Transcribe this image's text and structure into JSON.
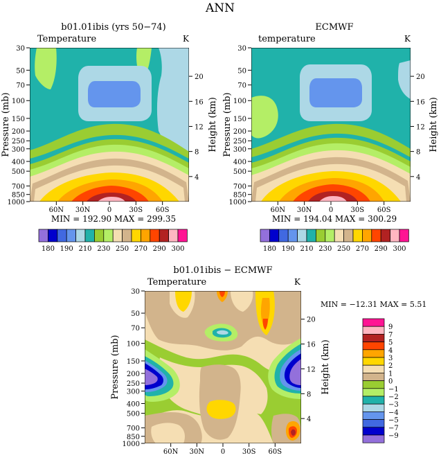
{
  "page_title": "ANN",
  "colors": {
    "c_purple": "#9370db",
    "c_navy": "#0000cd",
    "c_blue": "#4169e1",
    "c_cornflower": "#6495ed",
    "c_lightblue": "#add8e6",
    "c_teal": "#20b2aa",
    "c_green": "#9acd32",
    "c_lightgreen": "#b4ee66",
    "c_wheat": "#f5deb3",
    "c_tan": "#d2b48c",
    "c_yellow": "#ffd700",
    "c_orange": "#ffa500",
    "c_orangered": "#ff4500",
    "c_firebrick": "#b22222",
    "c_pink": "#ffb6c1",
    "c_magenta": "#ff1493"
  },
  "panels": [
    {
      "title": "b01.01ibis (yrs 50−74)",
      "variable": "Temperature",
      "unit": "K",
      "min_max": "MIN = 192.90   MAX = 299.35"
    },
    {
      "title": "ECMWF",
      "variable": "temperature",
      "unit": "K",
      "min_max": "MIN = 194.04   MAX = 300.29"
    },
    {
      "title": "b01.01ibis − ECMWF",
      "variable": "Temperature",
      "unit": "K",
      "min_max": "MIN = −12.31   MAX =     5.51"
    }
  ],
  "axes": {
    "ylabel_left": "Pressure (mb)",
    "ylabel_right": "Height (km)",
    "pressure_ticks": [
      "30",
      "50",
      "70",
      "100",
      "150",
      "200",
      "250",
      "300",
      "400",
      "500",
      "700",
      "850",
      "1000"
    ],
    "height_ticks_top": [
      "20",
      "16",
      "12",
      "8",
      "4"
    ],
    "height_ticks_bottom": [
      "20",
      "16",
      "12",
      "8",
      "4"
    ],
    "lat_ticks": [
      "60N",
      "30N",
      "0",
      "30S",
      "60S"
    ]
  },
  "colorbar_abs": {
    "labels": [
      "180",
      "190",
      "210",
      "230",
      "250",
      "270",
      "290",
      "300"
    ]
  },
  "colorbar_diff": {
    "labels": [
      "9",
      "7",
      "5",
      "4",
      "3",
      "2",
      "1",
      "0",
      "−1",
      "−2",
      "−3",
      "−4",
      "−5",
      "−7",
      "−9"
    ]
  },
  "chart_data": [
    {
      "type": "heatmap",
      "subtype": "latitude-pressure contour",
      "title": "b01.01ibis (yrs 50−74)",
      "variable": "Temperature",
      "unit": "K",
      "xlabel": "",
      "ylabel": "Pressure (mb)",
      "ylabel_right": "Height (km)",
      "x_ticks": [
        "60N",
        "30N",
        "0",
        "30S",
        "60S"
      ],
      "y_ticks": [
        30,
        50,
        70,
        100,
        150,
        200,
        250,
        300,
        400,
        500,
        700,
        850,
        1000
      ],
      "y_scale": "log",
      "min": 192.9,
      "max": 299.35,
      "contour_levels": [
        180,
        190,
        200,
        210,
        220,
        230,
        240,
        250,
        260,
        270,
        280,
        290,
        295,
        300
      ]
    },
    {
      "type": "heatmap",
      "subtype": "latitude-pressure contour",
      "title": "ECMWF",
      "variable": "temperature",
      "unit": "K",
      "xlabel": "",
      "ylabel": "Pressure (mb)",
      "ylabel_right": "Height (km)",
      "x_ticks": [
        "60N",
        "30N",
        "0",
        "30S",
        "60S"
      ],
      "y_ticks": [
        30,
        50,
        70,
        100,
        150,
        200,
        250,
        300,
        400,
        500,
        700,
        850,
        1000
      ],
      "y_scale": "log",
      "min": 194.04,
      "max": 300.29,
      "contour_levels": [
        180,
        190,
        200,
        210,
        220,
        230,
        240,
        250,
        260,
        270,
        280,
        290,
        295,
        300
      ]
    },
    {
      "type": "heatmap",
      "subtype": "latitude-pressure contour (difference)",
      "title": "b01.01ibis − ECMWF",
      "variable": "Temperature",
      "unit": "K",
      "xlabel": "",
      "ylabel": "Pressure (mb)",
      "ylabel_right": "Height (km)",
      "x_ticks": [
        "60N",
        "30N",
        "0",
        "30S",
        "60S"
      ],
      "y_ticks": [
        30,
        50,
        70,
        100,
        150,
        200,
        250,
        300,
        400,
        500,
        700,
        850,
        1000
      ],
      "y_scale": "log",
      "min": -12.31,
      "max": 5.51,
      "contour_levels": [
        -9,
        -7,
        -5,
        -4,
        -3,
        -2,
        -1,
        0,
        1,
        2,
        3,
        4,
        5,
        7,
        9
      ]
    }
  ]
}
